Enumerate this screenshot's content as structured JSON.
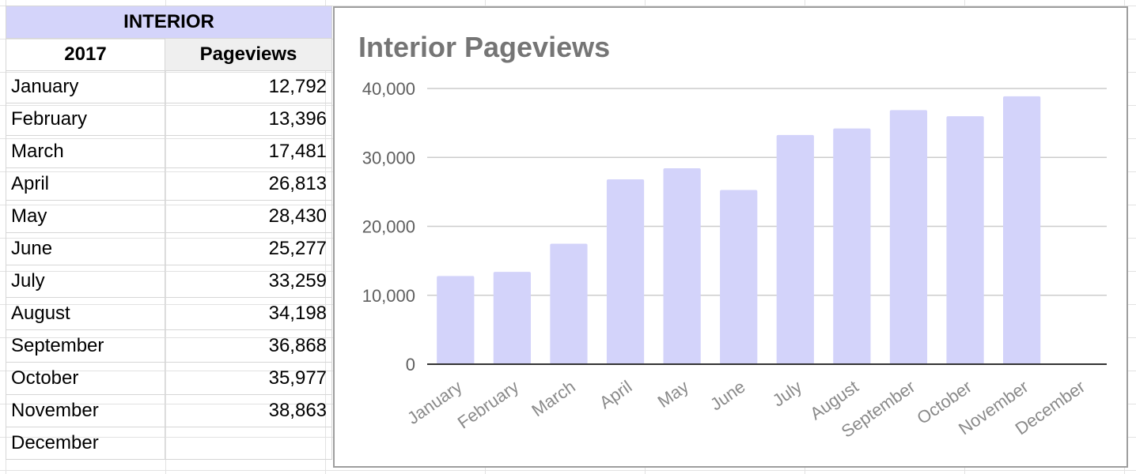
{
  "table": {
    "title": "INTERIOR",
    "col_year": "2017",
    "col_metric": "Pageviews",
    "rows": [
      {
        "month": "January",
        "value": "12,792"
      },
      {
        "month": "February",
        "value": "13,396"
      },
      {
        "month": "March",
        "value": "17,481"
      },
      {
        "month": "April",
        "value": "26,813"
      },
      {
        "month": "May",
        "value": "28,430"
      },
      {
        "month": "June",
        "value": "25,277"
      },
      {
        "month": "July",
        "value": "33,259"
      },
      {
        "month": "August",
        "value": "34,198"
      },
      {
        "month": "September",
        "value": "36,868"
      },
      {
        "month": "October",
        "value": "35,977"
      },
      {
        "month": "November",
        "value": "38,863"
      },
      {
        "month": "December",
        "value": ""
      }
    ]
  },
  "chart_data": {
    "type": "bar",
    "title": "Interior Pageviews",
    "categories": [
      "January",
      "February",
      "March",
      "April",
      "May",
      "June",
      "July",
      "August",
      "September",
      "October",
      "November",
      "December"
    ],
    "values": [
      12792,
      13396,
      17481,
      26813,
      28430,
      25277,
      33259,
      34198,
      36868,
      35977,
      38863,
      null
    ],
    "ylim": [
      0,
      40000
    ],
    "yticks": [
      0,
      10000,
      20000,
      30000,
      40000
    ],
    "ytick_labels": [
      "0",
      "10,000",
      "20,000",
      "30,000",
      "40,000"
    ],
    "grid": true,
    "legend": "none",
    "bar_color": "#d3d3fa",
    "title_color": "#757575"
  }
}
